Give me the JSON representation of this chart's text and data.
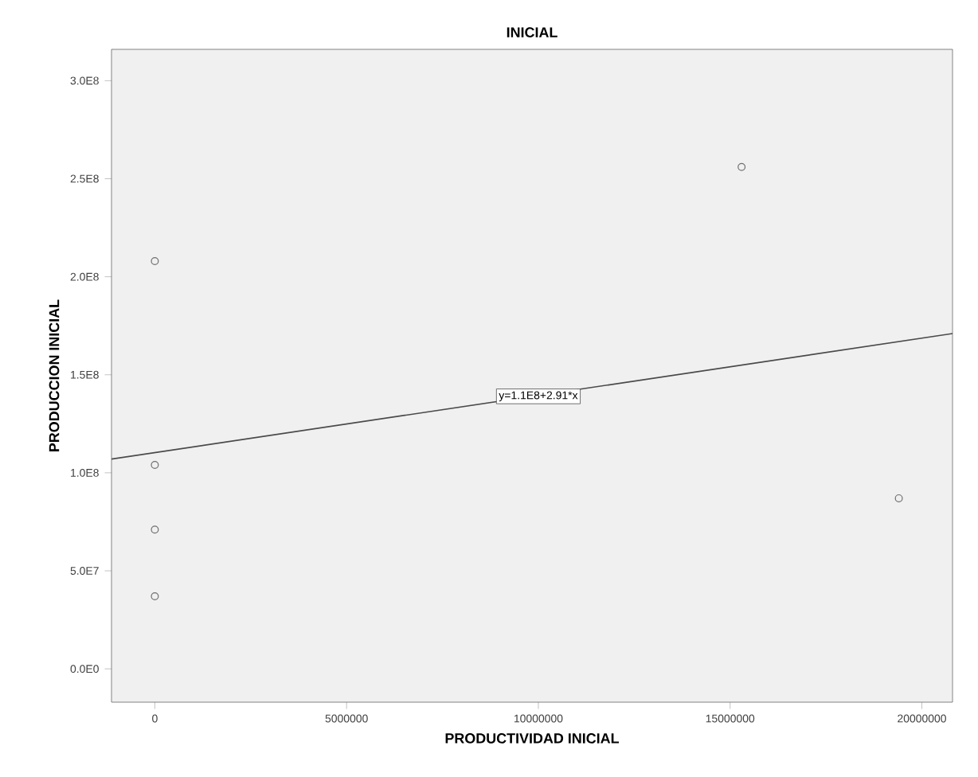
{
  "chart_data": {
    "type": "scatter",
    "title": "INICIAL",
    "xlabel": "PRODUCTIVIDAD INICIAL",
    "ylabel": "PRODUCCION INICIAL",
    "xlim": [
      -1130000,
      20800000
    ],
    "ylim": [
      -17000000,
      316000000
    ],
    "xticks": [
      0,
      5000000,
      10000000,
      15000000,
      20000000
    ],
    "yticks": [
      {
        "value": 0,
        "label": "0.0E0"
      },
      {
        "value": 50000000,
        "label": "5.0E7"
      },
      {
        "value": 100000000,
        "label": "1.0E8"
      },
      {
        "value": 150000000,
        "label": "1.5E8"
      },
      {
        "value": 200000000,
        "label": "2.0E8"
      },
      {
        "value": 250000000,
        "label": "2.5E8"
      },
      {
        "value": 300000000,
        "label": "3.0E8"
      }
    ],
    "grid": false,
    "marker": "circle",
    "series": [
      {
        "color": "#6e6e6e",
        "x": [
          0,
          0,
          0,
          0,
          15300000,
          19400000
        ],
        "values": [
          208000000,
          104000000,
          71000000,
          37000000,
          256000000,
          87000000
        ]
      },
      {
        "type": "line",
        "color": "#4a4a4a",
        "marker": "none",
        "line_style": "solid",
        "x": [
          -1130000,
          20800000
        ],
        "values": [
          107000000,
          171000000
        ]
      }
    ],
    "annotations": [
      {
        "text": "y=1.1E8+2.91*x",
        "x": 10000000,
        "y": 139000000
      }
    ]
  }
}
